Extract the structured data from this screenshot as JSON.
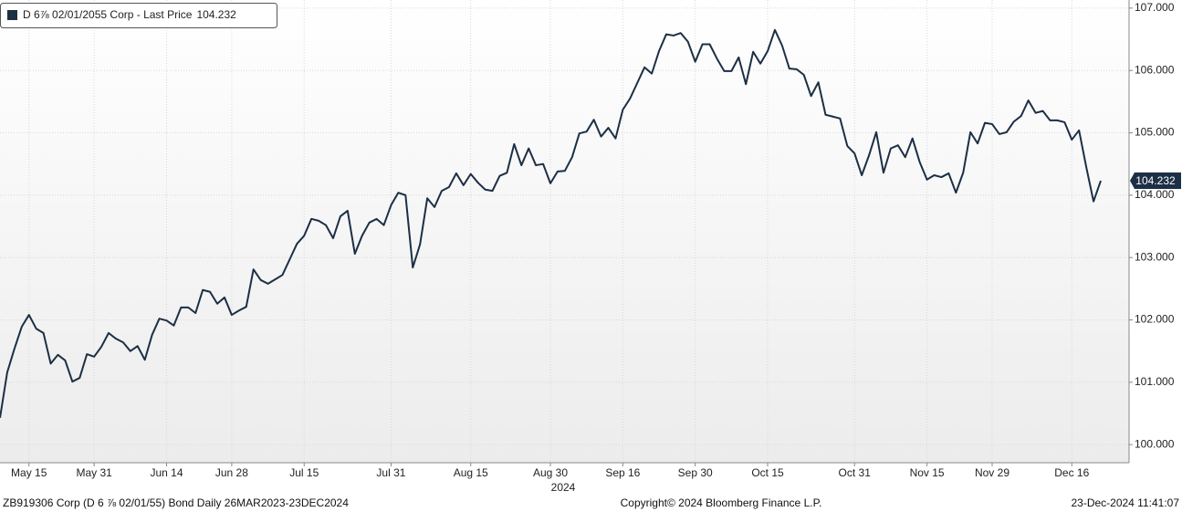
{
  "chart_data": {
    "type": "line",
    "series": [
      {
        "name": "D 6⅞ 02/01/2055 Corp - Last Price",
        "color": "#1c2f45",
        "values": [
          100.43,
          101.16,
          101.54,
          101.89,
          102.08,
          101.86,
          101.79,
          101.3,
          101.44,
          101.35,
          101.01,
          101.07,
          101.45,
          101.41,
          101.57,
          101.79,
          101.7,
          101.64,
          101.5,
          101.58,
          101.36,
          101.76,
          102.02,
          101.99,
          101.91,
          102.2,
          102.2,
          102.11,
          102.48,
          102.45,
          102.26,
          102.36,
          102.08,
          102.15,
          102.21,
          102.81,
          102.64,
          102.58,
          102.65,
          102.72,
          102.97,
          103.22,
          103.35,
          103.62,
          103.59,
          103.52,
          103.31,
          103.66,
          103.75,
          103.06,
          103.35,
          103.56,
          103.62,
          103.52,
          103.84,
          104.04,
          104.0,
          102.84,
          103.21,
          103.95,
          103.81,
          104.07,
          104.13,
          104.35,
          104.16,
          104.34,
          104.2,
          104.09,
          104.07,
          104.31,
          104.36,
          104.82,
          104.48,
          104.75,
          104.48,
          104.5,
          104.19,
          104.38,
          104.39,
          104.61,
          104.99,
          105.02,
          105.21,
          104.94,
          105.08,
          104.91,
          105.37,
          105.55,
          105.8,
          106.05,
          105.95,
          106.31,
          106.58,
          106.56,
          106.6,
          106.46,
          106.14,
          106.42,
          106.42,
          106.19,
          105.99,
          105.99,
          106.21,
          105.78,
          106.3,
          106.11,
          106.31,
          106.65,
          106.4,
          106.03,
          106.02,
          105.93,
          105.59,
          105.81,
          105.29,
          105.26,
          105.23,
          104.79,
          104.67,
          104.32,
          104.64,
          105.01,
          104.36,
          104.75,
          104.8,
          104.61,
          104.91,
          104.53,
          104.25,
          104.32,
          104.29,
          104.35,
          104.04,
          104.36,
          105.01,
          104.83,
          105.16,
          105.14,
          104.98,
          105.01,
          105.18,
          105.27,
          105.52,
          105.32,
          105.35,
          105.2,
          105.2,
          105.17,
          104.89,
          105.04,
          104.45,
          103.9,
          104.232
        ]
      }
    ],
    "categories": [
      null,
      null,
      null,
      null,
      "May 15",
      null,
      null,
      null,
      null,
      null,
      null,
      null,
      null,
      "May 31",
      null,
      null,
      null,
      null,
      null,
      null,
      null,
      null,
      null,
      "Jun 14",
      null,
      null,
      null,
      null,
      null,
      null,
      null,
      null,
      "Jun 28",
      null,
      null,
      null,
      null,
      null,
      null,
      null,
      null,
      null,
      "Jul 15",
      null,
      null,
      null,
      null,
      null,
      null,
      null,
      null,
      null,
      null,
      null,
      "Jul 31",
      null,
      null,
      null,
      null,
      null,
      null,
      null,
      null,
      null,
      null,
      "Aug 15",
      null,
      null,
      null,
      null,
      null,
      null,
      null,
      null,
      null,
      null,
      "Aug 30",
      null,
      null,
      null,
      null,
      null,
      null,
      null,
      null,
      null,
      "Sep 16",
      null,
      null,
      null,
      null,
      null,
      null,
      null,
      null,
      null,
      "Sep 30",
      null,
      null,
      null,
      null,
      null,
      null,
      null,
      null,
      null,
      "Oct 15",
      null,
      null,
      null,
      null,
      null,
      null,
      null,
      null,
      null,
      null,
      null,
      "Oct 31",
      null,
      null,
      null,
      null,
      null,
      null,
      null,
      null,
      null,
      "Nov 15",
      null,
      null,
      null,
      null,
      null,
      null,
      null,
      null,
      "Nov 29",
      null,
      null,
      null,
      null,
      null,
      null,
      null,
      null,
      null,
      null,
      "Dec 16",
      null,
      null,
      null,
      null
    ],
    "year_label": "2024",
    "ylim": [
      99.71,
      107.13
    ],
    "yticks": [
      {
        "value": 100,
        "label": "100.000"
      },
      {
        "value": 101,
        "label": "101.000"
      },
      {
        "value": 102,
        "label": "102.000"
      },
      {
        "value": 103,
        "label": "103.000"
      },
      {
        "value": 104,
        "label": "104.000"
      },
      {
        "value": 105,
        "label": "105.000"
      },
      {
        "value": 106,
        "label": "106.000"
      },
      {
        "value": 107,
        "label": "107.000"
      }
    ],
    "grid": true,
    "footer_left": "ZB919306 Corp (D 6 ⅞ 02/01/55) Bond  Daily 26MAR2023-23DEC2024",
    "footer_center": "Copyright© 2024 Bloomberg Finance L.P.",
    "footer_right": "23-Dec-2024 11:41:07"
  }
}
